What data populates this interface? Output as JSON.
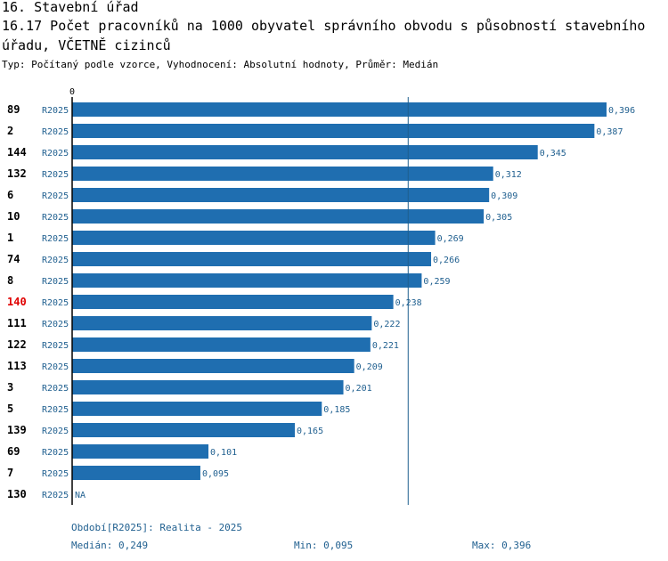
{
  "header": {
    "line1": "16. Stavební úřad",
    "line2": "16.17 Počet pracovníků na 1000 obyvatel správního obvodu s působností stavebního",
    "line3": "úřadu, VČETNĚ cizinců",
    "subtitle": "Typ: Počítaný podle vzorce, Vyhodnocení: Absolutní hodnoty, Průměr: Medián"
  },
  "colors": {
    "bar": "#1f6eb0",
    "value_text": "#1f5f8f",
    "highlight": "#e00000",
    "axis": "#000000",
    "median_line": "#1f5f8f"
  },
  "chart_data": {
    "type": "bar",
    "orientation": "horizontal",
    "axis_zero_label": "0",
    "xlim": [
      0,
      0.396
    ],
    "median": 0.249,
    "highlight_category": "140",
    "rows": [
      {
        "id": "89",
        "period": "R2025",
        "value": 0.396,
        "label": "0,396"
      },
      {
        "id": "2",
        "period": "R2025",
        "value": 0.387,
        "label": "0,387"
      },
      {
        "id": "144",
        "period": "R2025",
        "value": 0.345,
        "label": "0,345"
      },
      {
        "id": "132",
        "period": "R2025",
        "value": 0.312,
        "label": "0,312"
      },
      {
        "id": "6",
        "period": "R2025",
        "value": 0.309,
        "label": "0,309"
      },
      {
        "id": "10",
        "period": "R2025",
        "value": 0.305,
        "label": "0,305"
      },
      {
        "id": "1",
        "period": "R2025",
        "value": 0.269,
        "label": "0,269"
      },
      {
        "id": "74",
        "period": "R2025",
        "value": 0.266,
        "label": "0,266"
      },
      {
        "id": "8",
        "period": "R2025",
        "value": 0.259,
        "label": "0,259"
      },
      {
        "id": "140",
        "period": "R2025",
        "value": 0.238,
        "label": "0,238"
      },
      {
        "id": "111",
        "period": "R2025",
        "value": 0.222,
        "label": "0,222"
      },
      {
        "id": "122",
        "period": "R2025",
        "value": 0.221,
        "label": "0,221"
      },
      {
        "id": "113",
        "period": "R2025",
        "value": 0.209,
        "label": "0,209"
      },
      {
        "id": "3",
        "period": "R2025",
        "value": 0.201,
        "label": "0,201"
      },
      {
        "id": "5",
        "period": "R2025",
        "value": 0.185,
        "label": "0,185"
      },
      {
        "id": "139",
        "period": "R2025",
        "value": 0.165,
        "label": "0,165"
      },
      {
        "id": "69",
        "period": "R2025",
        "value": 0.101,
        "label": "0,101"
      },
      {
        "id": "7",
        "period": "R2025",
        "value": 0.095,
        "label": "0,095"
      },
      {
        "id": "130",
        "period": "R2025",
        "value": null,
        "label": "NA"
      }
    ]
  },
  "footer": {
    "period_note": "Období[R2025]: Realita - 2025",
    "median": "Medián: 0,249",
    "min": "Min: 0,095",
    "max": "Max: 0,396"
  }
}
